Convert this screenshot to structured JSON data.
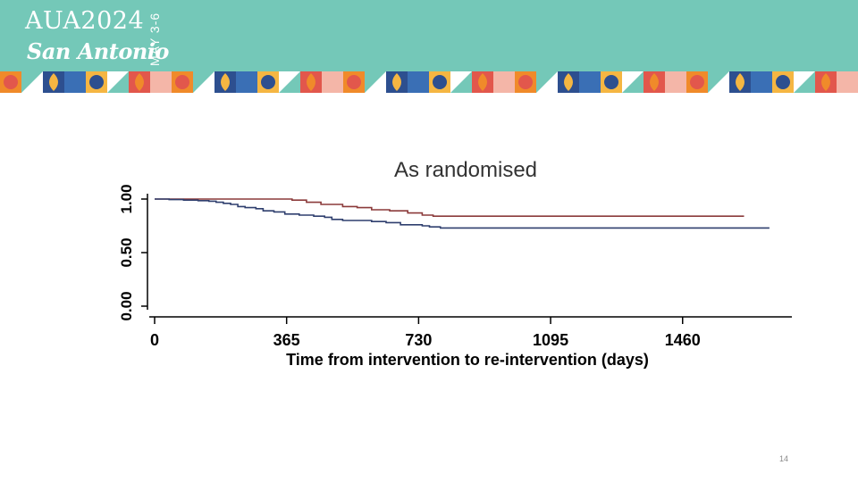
{
  "header": {
    "logo_line1": "AUA2024",
    "logo_line2": "San Antonio",
    "logo_date": "MAY 3-6",
    "banner_color": "#74c8b8"
  },
  "page_number": "14",
  "chart_data": {
    "type": "line",
    "title": "As randomised",
    "xlabel": "Time from intervention to re-intervention (days)",
    "ylabel": "",
    "xlim": [
      0,
      1730
    ],
    "ylim": [
      0,
      1
    ],
    "x_ticks": [
      {
        "value": 0,
        "label": "0"
      },
      {
        "value": 365,
        "label": "365"
      },
      {
        "value": 730,
        "label": "730"
      },
      {
        "value": 1095,
        "label": "1095"
      },
      {
        "value": 1460,
        "label": "1460"
      }
    ],
    "y_ticks": [
      {
        "value": 0,
        "label": "0.00"
      },
      {
        "value": 0.5,
        "label": "0.50"
      },
      {
        "value": 1,
        "label": "1.00"
      }
    ],
    "series": [
      {
        "color": "#8b3a3a",
        "step": true,
        "points": [
          [
            0,
            1.0
          ],
          [
            360,
            1.0
          ],
          [
            380,
            0.99
          ],
          [
            420,
            0.97
          ],
          [
            460,
            0.95
          ],
          [
            520,
            0.93
          ],
          [
            560,
            0.92
          ],
          [
            600,
            0.9
          ],
          [
            650,
            0.89
          ],
          [
            700,
            0.87
          ],
          [
            740,
            0.85
          ],
          [
            770,
            0.84
          ],
          [
            1630,
            0.84
          ]
        ]
      },
      {
        "color": "#2f3f6e",
        "step": true,
        "points": [
          [
            0,
            1.0
          ],
          [
            40,
            0.995
          ],
          [
            80,
            0.99
          ],
          [
            120,
            0.985
          ],
          [
            150,
            0.98
          ],
          [
            170,
            0.97
          ],
          [
            190,
            0.96
          ],
          [
            210,
            0.95
          ],
          [
            230,
            0.93
          ],
          [
            250,
            0.92
          ],
          [
            280,
            0.91
          ],
          [
            300,
            0.89
          ],
          [
            330,
            0.88
          ],
          [
            360,
            0.86
          ],
          [
            400,
            0.85
          ],
          [
            440,
            0.84
          ],
          [
            470,
            0.83
          ],
          [
            490,
            0.81
          ],
          [
            520,
            0.8
          ],
          [
            560,
            0.8
          ],
          [
            600,
            0.79
          ],
          [
            640,
            0.78
          ],
          [
            680,
            0.76
          ],
          [
            720,
            0.76
          ],
          [
            740,
            0.75
          ],
          [
            760,
            0.74
          ],
          [
            790,
            0.73
          ],
          [
            1700,
            0.73
          ]
        ]
      }
    ]
  }
}
